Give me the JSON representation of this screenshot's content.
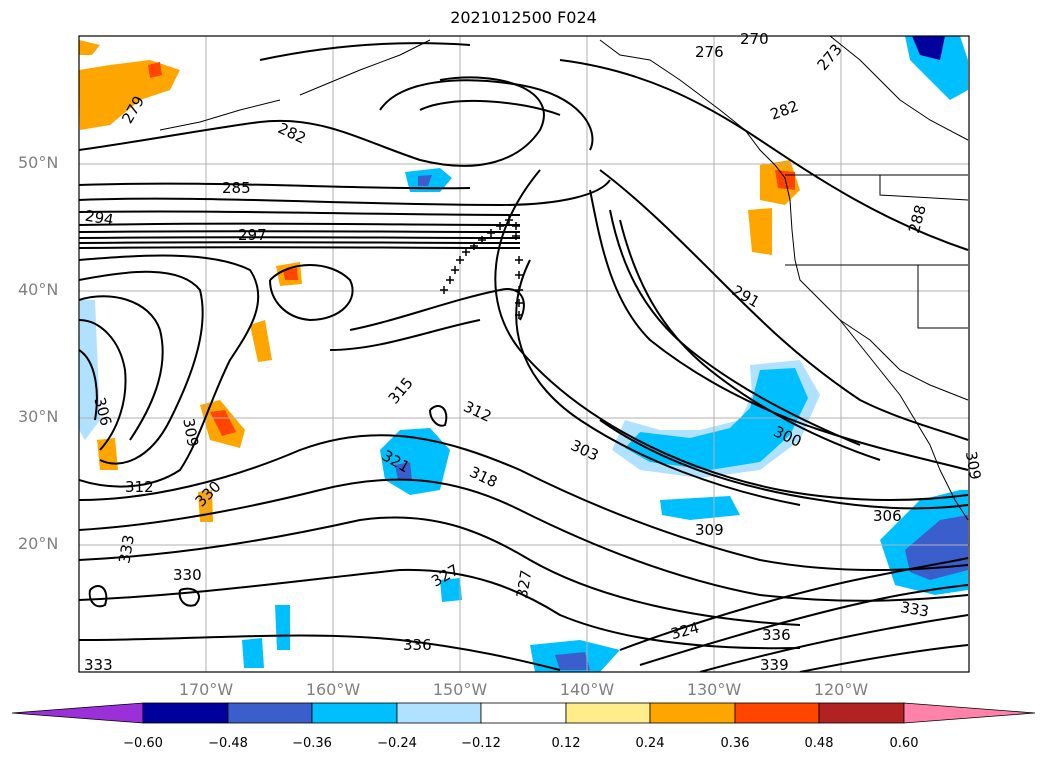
{
  "title": "2021012500 F024",
  "lat_labels": [
    "50°N",
    "40°N",
    "30°N",
    "20°N"
  ],
  "lon_labels": [
    "170°W",
    "160°W",
    "150°W",
    "140°W",
    "130°W",
    "120°W"
  ],
  "colorbar": {
    "ticks": [
      "−0.60",
      "−0.48",
      "−0.36",
      "−0.24",
      "−0.12",
      "0.12",
      "0.24",
      "0.36",
      "0.48",
      "0.60"
    ],
    "colors": [
      "#9b30d8",
      "#00009c",
      "#3a5fcd",
      "#00bfff",
      "#b0e2ff",
      "#ffffff",
      "#ffec8b",
      "#ffa500",
      "#ff4500",
      "#b22222",
      "#ff82ab"
    ]
  },
  "contour_labels": [
    "279",
    "282",
    "285",
    "294",
    "297",
    "276",
    "270",
    "273",
    "282",
    "288",
    "291",
    "300",
    "306",
    "303",
    "309",
    "312",
    "315",
    "318",
    "321",
    "312",
    "330",
    "333",
    "330",
    "327",
    "327",
    "324",
    "336",
    "333",
    "336",
    "339",
    "333",
    "306",
    "309",
    "309"
  ]
}
